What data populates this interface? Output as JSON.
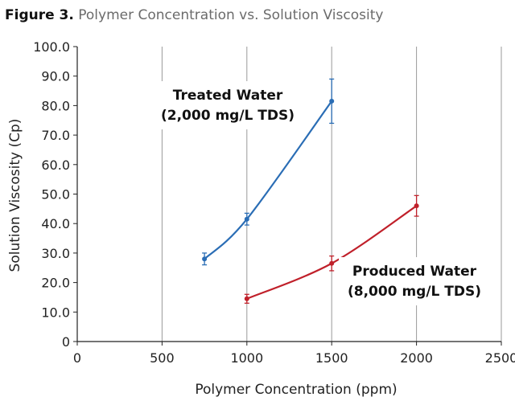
{
  "figure": {
    "label": "Figure 3.",
    "title": "Polymer Concentration vs. Solution Viscosity"
  },
  "chart_data": {
    "type": "line",
    "xlabel": "Polymer Concentration (ppm)",
    "ylabel": "Solution Viscosity (Cp)",
    "xlim": [
      0,
      2500
    ],
    "ylim": [
      0,
      100
    ],
    "x_ticks": [
      "0",
      "500",
      "1000",
      "1500",
      "2000",
      "2500"
    ],
    "y_ticks": [
      "0",
      "10.0",
      "20.0",
      "30.0",
      "40.0",
      "50.0",
      "60.0",
      "70.0",
      "80.0",
      "90.0",
      "100.0"
    ],
    "grid": "vertical",
    "series": [
      {
        "name": "Treated Water (2,000 mg/L TDS)",
        "label_lines": [
          "Treated Water",
          "(2,000 mg/L TDS)"
        ],
        "color": "#2a6db5",
        "x": [
          750,
          1000,
          1500
        ],
        "y": [
          28.0,
          41.5,
          81.5
        ],
        "error": [
          2.0,
          2.0,
          7.5
        ]
      },
      {
        "name": "Produced Water (8,000 mg/L TDS)",
        "label_lines": [
          "Produced Water",
          "(8,000 mg/L TDS)"
        ],
        "color": "#c0202a",
        "x": [
          1000,
          1500,
          2000
        ],
        "y": [
          14.5,
          26.5,
          46.0
        ],
        "error": [
          1.5,
          2.5,
          3.5
        ]
      }
    ]
  }
}
